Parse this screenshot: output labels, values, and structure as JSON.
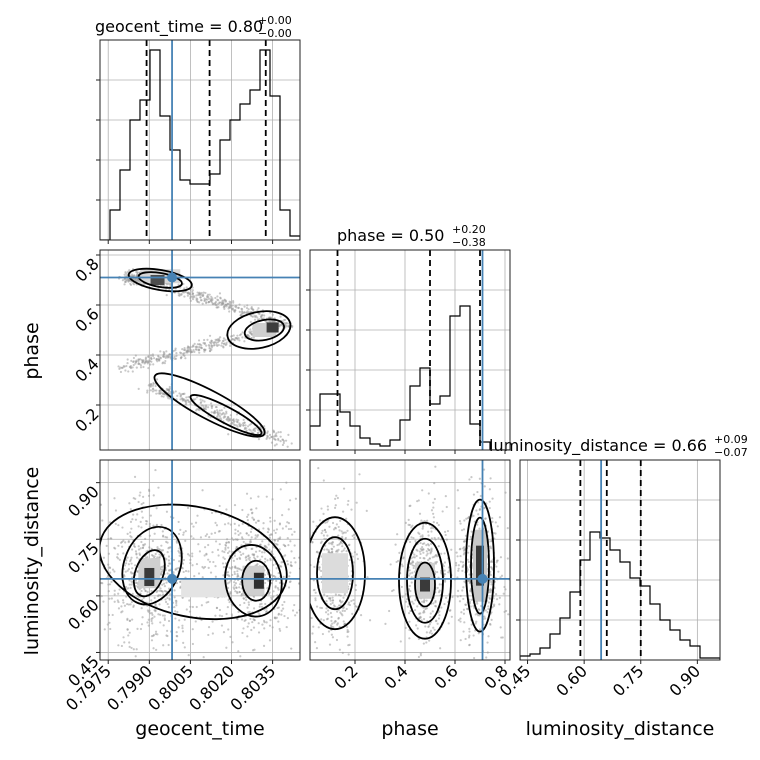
{
  "chart_data": {
    "type": "corner",
    "parameters": [
      {
        "name": "geocent_time",
        "label": "geocent_time",
        "median": "0.80",
        "plus": "+0.00",
        "minus": "−0.00",
        "range": [
          0.7972,
          0.8045
        ],
        "ticks": [
          0.7975,
          0.799,
          0.8005,
          0.802,
          0.8035
        ],
        "tick_labels": [
          "0.7975",
          "0.7990",
          "0.8005",
          "0.8020",
          "0.8035"
        ],
        "truth": 0.79983,
        "quantiles": [
          0.7989,
          0.8012,
          0.80325
        ]
      },
      {
        "name": "phase",
        "label": "phase",
        "median": "0.50",
        "plus": "+0.20",
        "minus": "−0.38",
        "range": [
          0.02,
          0.82
        ],
        "ticks": [
          0.2,
          0.4,
          0.6,
          0.8
        ],
        "tick_labels": [
          "0.2",
          "0.4",
          "0.6",
          "0.8"
        ],
        "truth": 0.71,
        "quantiles": [
          0.13,
          0.5,
          0.7
        ]
      },
      {
        "name": "luminosity_distance",
        "label": "luminosity_distance",
        "median": "0.66",
        "plus": "+0.09",
        "minus": "−0.07",
        "range": [
          0.43,
          0.96
        ],
        "ticks": [
          0.45,
          0.6,
          0.75,
          0.9
        ],
        "tick_labels": [
          "0.45",
          "0.60",
          "0.75",
          "0.90"
        ],
        "truth": 0.645,
        "quantiles": [
          0.59,
          0.66,
          0.75
        ]
      }
    ],
    "histograms": {
      "geocent_time": {
        "edges_start": 0.7972,
        "bin_width": 0.000365,
        "counts": [
          0.0,
          0.15,
          0.35,
          0.6,
          0.7,
          0.95,
          0.62,
          0.45,
          0.3,
          0.28,
          0.28,
          0.33,
          0.5,
          0.6,
          0.68,
          0.75,
          0.95,
          0.72,
          0.15,
          0.02
        ]
      },
      "phase": {
        "edges_start": 0.02,
        "bin_width": 0.04,
        "counts": [
          0.12,
          0.28,
          0.28,
          0.19,
          0.12,
          0.06,
          0.03,
          0.02,
          0.05,
          0.15,
          0.32,
          0.41,
          0.23,
          0.27,
          0.67,
          0.72,
          0.13,
          0.04,
          0.0,
          0.0
        ]
      },
      "luminosity_distance": {
        "edges_start": 0.43,
        "bin_width": 0.0265,
        "counts": [
          0.02,
          0.03,
          0.06,
          0.13,
          0.21,
          0.34,
          0.5,
          0.64,
          0.61,
          0.55,
          0.49,
          0.41,
          0.37,
          0.28,
          0.2,
          0.15,
          0.1,
          0.07,
          0.01,
          0.01
        ]
      }
    },
    "grid": true
  },
  "icons": {
    "truth_marker": "filled-circle"
  },
  "colors": {
    "truth": "#4682b4",
    "contour": "#000000",
    "hist": "#000000"
  }
}
